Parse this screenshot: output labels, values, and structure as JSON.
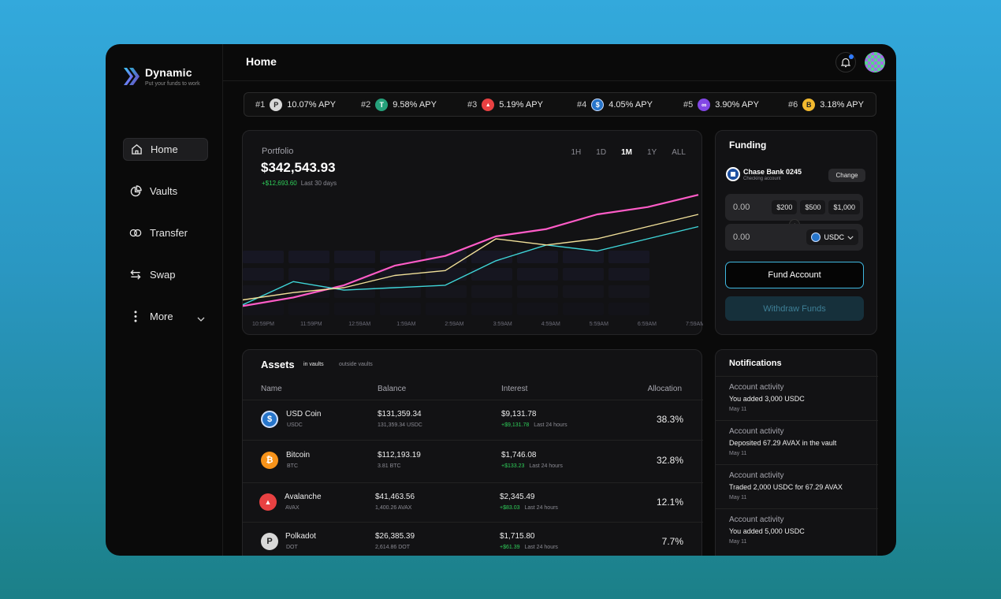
{
  "app": {
    "name": "Dynamic",
    "tagline": "Put your funds to work"
  },
  "nav": {
    "items": [
      {
        "label": "Home",
        "icon": "home-icon",
        "active": true
      },
      {
        "label": "Vaults",
        "icon": "pie-chart-icon"
      },
      {
        "label": "Transfer",
        "icon": "transfer-icon"
      },
      {
        "label": "Swap",
        "icon": "swap-icon"
      },
      {
        "label": "More",
        "icon": "more-icon"
      }
    ]
  },
  "header": {
    "title": "Home"
  },
  "ticker": [
    {
      "rank": "#1",
      "apy": "10.07% APY",
      "coin_color": "#d8d8d8",
      "glyph": "P"
    },
    {
      "rank": "#2",
      "apy": "9.58% APY",
      "coin_color": "#26a17b",
      "glyph": "T"
    },
    {
      "rank": "#3",
      "apy": "5.19% APY",
      "coin_color": "#e84142",
      "glyph": "▲"
    },
    {
      "rank": "#4",
      "apy": "4.05% APY",
      "coin_color": "#2775ca",
      "glyph": "$"
    },
    {
      "rank": "#5",
      "apy": "3.90% APY",
      "coin_color": "#8247e5",
      "glyph": "∞"
    },
    {
      "rank": "#6",
      "apy": "3.18% APY",
      "coin_color": "#f3ba2f",
      "glyph": "B"
    }
  ],
  "portfolio": {
    "label": "Portfolio",
    "value": "$342,543.93",
    "change": "+$12,693.60",
    "change_period": "Last 30 days",
    "ranges": [
      "1H",
      "1D",
      "1M",
      "1Y",
      "ALL"
    ],
    "selected_range": "1M"
  },
  "chart_data": {
    "type": "line",
    "x": [
      "10:59PM",
      "11:59PM",
      "12:59AM",
      "1:59AM",
      "2:59AM",
      "3:59AM",
      "4:59AM",
      "5:59AM",
      "6:59AM",
      "7:59AM"
    ],
    "series": [
      {
        "color": "#ff5cc8",
        "values": [
          0.05,
          0.12,
          0.22,
          0.38,
          0.46,
          0.62,
          0.68,
          0.8,
          0.86,
          0.96
        ]
      },
      {
        "color": "#3fd6d9",
        "values": [
          0.06,
          0.25,
          0.18,
          0.2,
          0.22,
          0.42,
          0.55,
          0.5,
          0.6,
          0.7
        ]
      },
      {
        "color": "#f2e19a",
        "values": [
          0.1,
          0.16,
          0.2,
          0.3,
          0.34,
          0.6,
          0.55,
          0.6,
          0.7,
          0.8
        ]
      }
    ],
    "colors": {
      "accent": "#3fb8e0",
      "positive": "#2fcf5a"
    }
  },
  "funding": {
    "title": "Funding",
    "bank_name": "Chase Bank 0245",
    "bank_type": "Checking account",
    "change_label": "Change",
    "amount_value": "0.00",
    "presets": [
      "$200",
      "$500",
      "$1,000"
    ],
    "receive_value": "0.00",
    "token": "USDC",
    "fund_label": "Fund Account",
    "withdraw_label": "Withdraw Funds"
  },
  "assets": {
    "title": "Assets",
    "tab_in": "in vaults",
    "tab_out": "outside vaults",
    "columns": [
      "Name",
      "Balance",
      "Interest",
      "Allocation"
    ],
    "rows": [
      {
        "name": "USD Coin",
        "symbol": "USDC",
        "balance": "$131,359.34",
        "balance_sub": "131,359.34 USDC",
        "interest": "$9,131.78",
        "interest_change": "+$9,131.78",
        "interest_period": "Last 24 hours",
        "allocation": "38.3%",
        "coin_color": "#2775ca",
        "glyph": "$"
      },
      {
        "name": "Bitcoin",
        "symbol": "BTC",
        "balance": "$112,193.19",
        "balance_sub": "3.81 BTC",
        "interest": "$1,746.08",
        "interest_change": "+$133.23",
        "interest_period": "Last 24 hours",
        "allocation": "32.8%",
        "coin_color": "#f7931a",
        "glyph": "₿"
      },
      {
        "name": "Avalanche",
        "symbol": "AVAX",
        "balance": "$41,463.56",
        "balance_sub": "1,400.26 AVAX",
        "interest": "$2,345.49",
        "interest_change": "+$83.03",
        "interest_period": "Last 24 hours",
        "allocation": "12.1%",
        "coin_color": "#e84142",
        "glyph": "▲"
      },
      {
        "name": "Polkadot",
        "symbol": "DOT",
        "balance": "$26,385.39",
        "balance_sub": "2,614.86 DOT",
        "interest": "$1,715.80",
        "interest_change": "+$61.39",
        "interest_period": "Last 24 hours",
        "allocation": "7.7%",
        "coin_color": "#d8d8d8",
        "glyph": "P"
      }
    ]
  },
  "notifications": {
    "title": "Notifications",
    "items": [
      {
        "heading": "Account activity",
        "body": "You added 3,000 USDC",
        "date": "May 11"
      },
      {
        "heading": "Account activity",
        "body": "Deposited 67.29 AVAX in the vault",
        "date": "May 11"
      },
      {
        "heading": "Account activity",
        "body": "Traded 2,000 USDC for 67.29 AVAX",
        "date": "May 11"
      },
      {
        "heading": "Account activity",
        "body": "You added 5,000 USDC",
        "date": "May 11"
      }
    ]
  }
}
